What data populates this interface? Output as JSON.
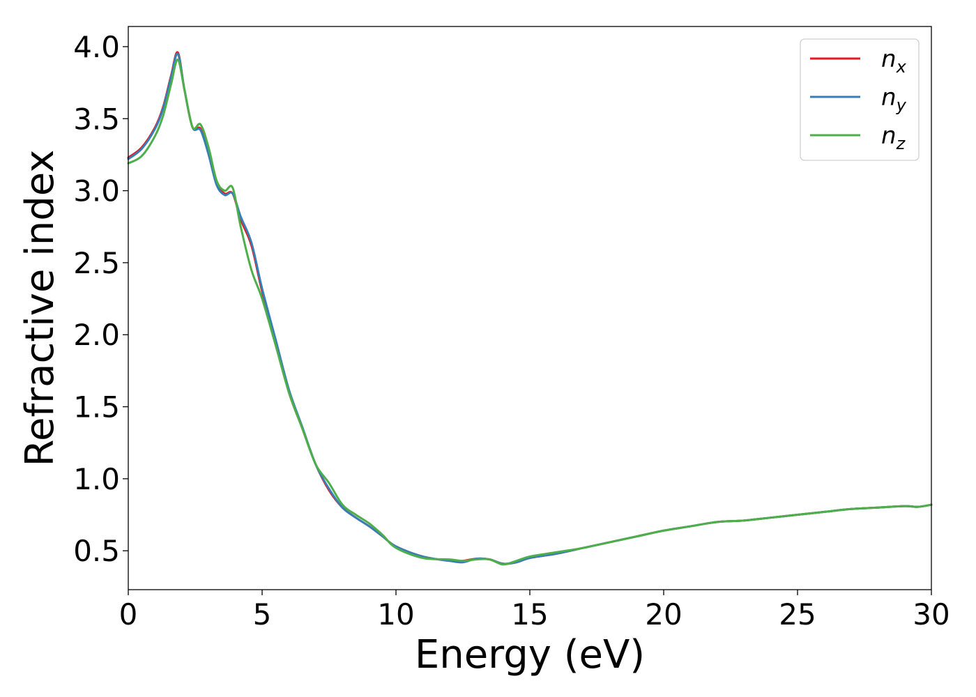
{
  "chart_data": {
    "type": "line",
    "title": "",
    "xlabel": "Energy (eV)",
    "ylabel": "Refractive index",
    "xlim": [
      0,
      30
    ],
    "ylim": [
      0.23,
      4.14
    ],
    "xticks": [
      0,
      5,
      10,
      15,
      20,
      25,
      30
    ],
    "xtick_labels": [
      "0",
      "5",
      "10",
      "15",
      "20",
      "25",
      "30"
    ],
    "yticks": [
      0.5,
      1.0,
      1.5,
      2.0,
      2.5,
      3.0,
      3.5,
      4.0
    ],
    "ytick_labels": [
      "0.5",
      "1.0",
      "1.5",
      "2.0",
      "2.5",
      "3.0",
      "3.5",
      "4.0"
    ],
    "grid": false,
    "legend_position": "top-right",
    "series": [
      {
        "name": "n",
        "subscript": "x",
        "color": "#e41a1c",
        "x": [
          0,
          0.5,
          1.0,
          1.3,
          1.6,
          1.85,
          2.1,
          2.4,
          2.7,
          3.0,
          3.3,
          3.6,
          3.9,
          4.2,
          4.6,
          5.0,
          5.5,
          6.0,
          6.5,
          7.0,
          7.5,
          8.0,
          8.5,
          9.0,
          9.5,
          10.0,
          11.0,
          12.0,
          12.5,
          13.0,
          13.5,
          14.0,
          14.5,
          15.0,
          16.0,
          17.0,
          18.0,
          19.0,
          20.0,
          21.0,
          22.0,
          23.0,
          24.0,
          25.0,
          26.0,
          27.0,
          28.0,
          29.0,
          29.5,
          30.0
        ],
        "y": [
          3.23,
          3.3,
          3.44,
          3.58,
          3.8,
          3.96,
          3.7,
          3.44,
          3.43,
          3.26,
          3.05,
          2.98,
          2.98,
          2.8,
          2.62,
          2.3,
          1.95,
          1.6,
          1.35,
          1.1,
          0.92,
          0.8,
          0.73,
          0.67,
          0.6,
          0.53,
          0.46,
          0.43,
          0.43,
          0.445,
          0.44,
          0.41,
          0.42,
          0.45,
          0.48,
          0.52,
          0.56,
          0.6,
          0.64,
          0.67,
          0.7,
          0.71,
          0.73,
          0.75,
          0.77,
          0.79,
          0.8,
          0.81,
          0.805,
          0.82
        ]
      },
      {
        "name": "n",
        "subscript": "y",
        "color": "#377eb8",
        "x": [
          0,
          0.5,
          1.0,
          1.3,
          1.6,
          1.85,
          2.1,
          2.4,
          2.7,
          3.0,
          3.3,
          3.6,
          3.9,
          4.2,
          4.6,
          5.0,
          5.5,
          6.0,
          6.5,
          7.0,
          7.5,
          8.0,
          8.5,
          9.0,
          9.5,
          10.0,
          11.0,
          12.0,
          12.5,
          13.0,
          13.5,
          14.0,
          14.5,
          15.0,
          16.0,
          17.0,
          18.0,
          19.0,
          20.0,
          21.0,
          22.0,
          23.0,
          24.0,
          25.0,
          26.0,
          27.0,
          28.0,
          29.0,
          29.5,
          30.0
        ],
        "y": [
          3.22,
          3.29,
          3.43,
          3.57,
          3.79,
          3.95,
          3.7,
          3.44,
          3.42,
          3.25,
          3.04,
          2.97,
          2.98,
          2.82,
          2.64,
          2.32,
          1.97,
          1.62,
          1.36,
          1.1,
          0.93,
          0.8,
          0.73,
          0.67,
          0.6,
          0.53,
          0.46,
          0.43,
          0.42,
          0.445,
          0.44,
          0.41,
          0.42,
          0.45,
          0.48,
          0.52,
          0.56,
          0.6,
          0.64,
          0.67,
          0.7,
          0.71,
          0.73,
          0.75,
          0.77,
          0.79,
          0.8,
          0.81,
          0.805,
          0.82
        ]
      },
      {
        "name": "n",
        "subscript": "z",
        "color": "#4daf4a",
        "x": [
          0,
          0.5,
          1.0,
          1.3,
          1.6,
          1.85,
          2.1,
          2.4,
          2.7,
          3.0,
          3.3,
          3.6,
          3.9,
          4.2,
          4.6,
          5.0,
          5.5,
          6.0,
          6.5,
          7.0,
          7.5,
          8.0,
          8.5,
          9.0,
          9.5,
          10.0,
          11.0,
          12.0,
          12.5,
          13.0,
          13.5,
          14.0,
          14.5,
          15.0,
          16.0,
          17.0,
          18.0,
          19.0,
          20.0,
          21.0,
          22.0,
          23.0,
          24.0,
          25.0,
          26.0,
          27.0,
          28.0,
          29.0,
          29.5,
          30.0
        ],
        "y": [
          3.19,
          3.24,
          3.38,
          3.52,
          3.74,
          3.91,
          3.7,
          3.44,
          3.46,
          3.3,
          3.07,
          3.0,
          3.02,
          2.75,
          2.45,
          2.25,
          1.93,
          1.6,
          1.35,
          1.1,
          0.97,
          0.82,
          0.75,
          0.69,
          0.61,
          0.52,
          0.45,
          0.44,
          0.43,
          0.44,
          0.44,
          0.405,
          0.43,
          0.46,
          0.49,
          0.52,
          0.56,
          0.6,
          0.64,
          0.67,
          0.7,
          0.71,
          0.73,
          0.75,
          0.77,
          0.79,
          0.8,
          0.81,
          0.805,
          0.82
        ]
      }
    ]
  }
}
